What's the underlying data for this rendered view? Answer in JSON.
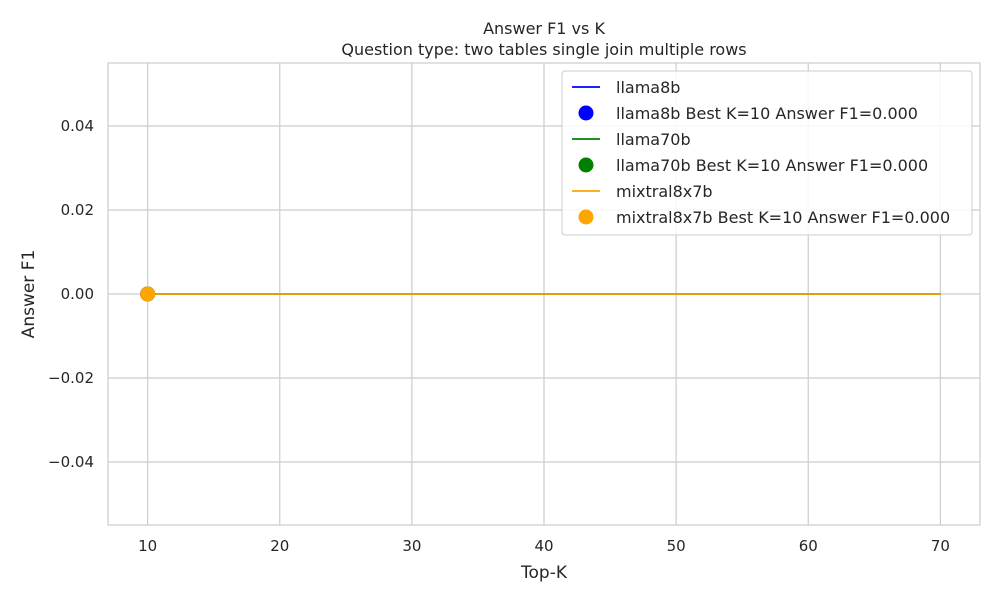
{
  "chart_data": {
    "type": "line",
    "title": "Answer F1 vs K",
    "subtitle": "Question type: two tables single join multiple rows",
    "xlabel": "Top-K",
    "ylabel": "Answer F1",
    "xlim": [
      7,
      73
    ],
    "ylim": [
      -0.055,
      0.055
    ],
    "x_ticks": [
      10,
      20,
      30,
      40,
      50,
      60,
      70
    ],
    "y_ticks": [
      -0.04,
      -0.02,
      0.0,
      0.02,
      0.04
    ],
    "x_tick_labels": [
      "10",
      "20",
      "30",
      "40",
      "50",
      "60",
      "70"
    ],
    "y_tick_labels": [
      "−0.04",
      "−0.02",
      "0.00",
      "0.02",
      "0.04"
    ],
    "grid": true,
    "legend_position": "top-right",
    "x": [
      10,
      20,
      30,
      40,
      50,
      60,
      70
    ],
    "series": [
      {
        "name": "llama8b",
        "color": "#0000ff",
        "values": [
          0,
          0,
          0,
          0,
          0,
          0,
          0
        ],
        "best": {
          "label": "llama8b Best K=10 Answer F1=0.000",
          "x": 10,
          "y": 0
        }
      },
      {
        "name": "llama70b",
        "color": "#008000",
        "values": [
          0,
          0,
          0,
          0,
          0,
          0,
          0
        ],
        "best": {
          "label": "llama70b Best K=10 Answer F1=0.000",
          "x": 10,
          "y": 0
        }
      },
      {
        "name": "mixtral8x7b",
        "color": "#ffa500",
        "values": [
          0,
          0,
          0,
          0,
          0,
          0,
          0
        ],
        "best": {
          "label": "mixtral8x7b Best K=10 Answer F1=0.000",
          "x": 10,
          "y": 0
        }
      }
    ]
  }
}
